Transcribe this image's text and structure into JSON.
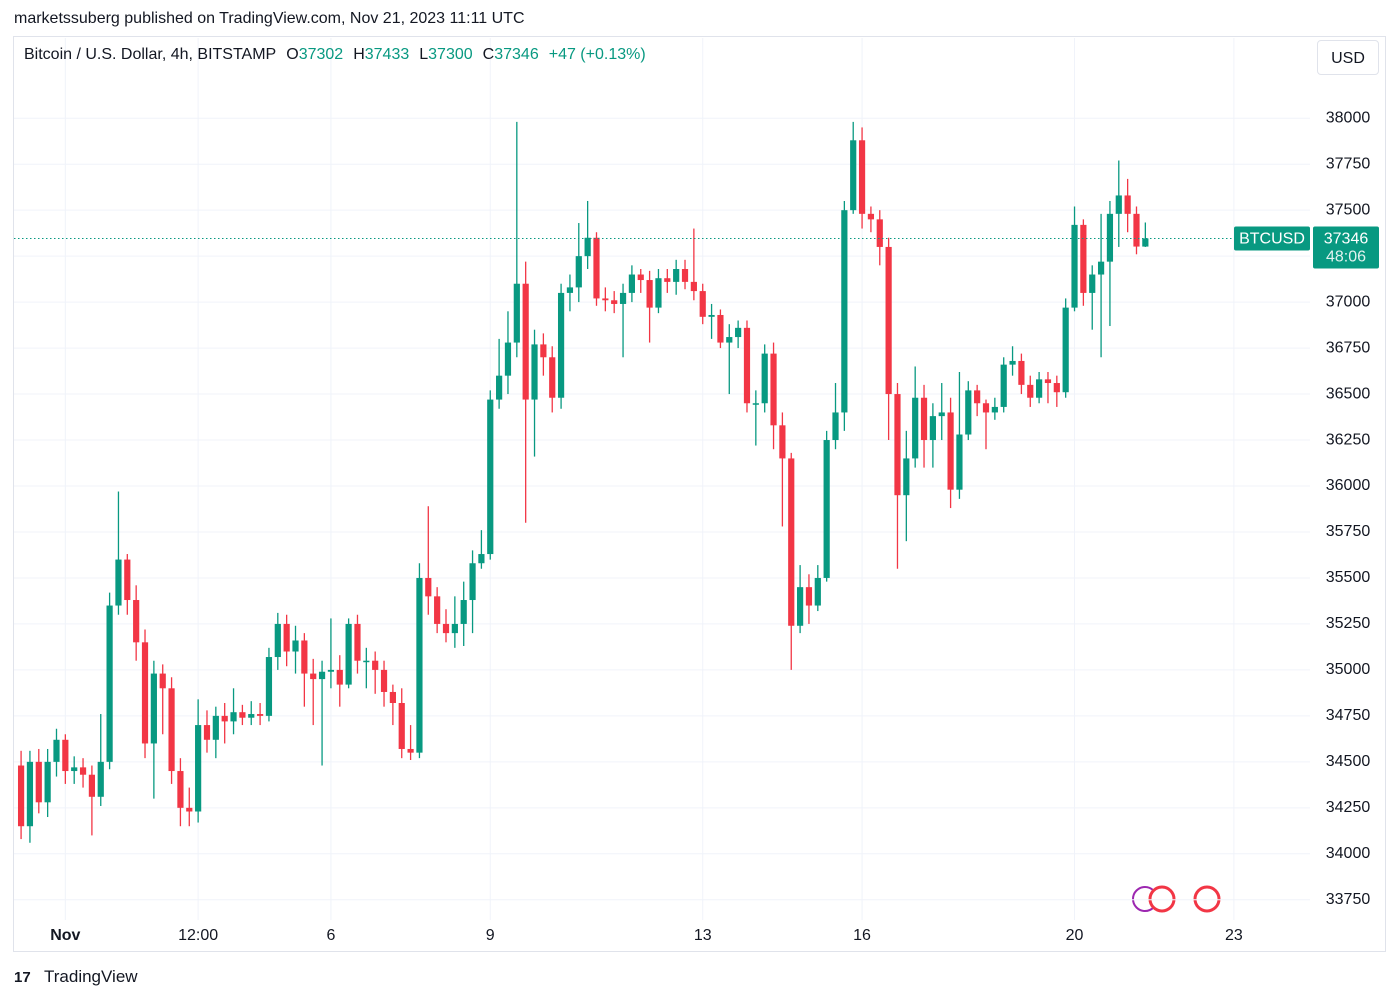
{
  "attribution": "marketssuberg published on TradingView.com, Nov 21, 2023 11:11 UTC",
  "footer": "TradingView",
  "currency_button": "USD",
  "chart_data": {
    "type": "candlestick",
    "title": "Bitcoin / U.S. Dollar, 4h, BITSTAMP",
    "ohlc_labels": [
      "O",
      "H",
      "L",
      "C"
    ],
    "change_label": "+47 (+0.13%)",
    "symbol_tag": "BTCUSD",
    "countdown": "48:06",
    "xlim": [
      -0.8,
      145.6
    ],
    "xticks": [
      {
        "value": 5,
        "label": "Nov"
      },
      {
        "value": 20,
        "label": "12:00"
      },
      {
        "value": 35,
        "label": "6"
      },
      {
        "value": 53,
        "label": "9"
      },
      {
        "value": 77,
        "label": "13"
      },
      {
        "value": 95,
        "label": "16"
      },
      {
        "value": 119,
        "label": "20"
      },
      {
        "value": 137,
        "label": "23"
      }
    ],
    "ylim": [
      33640,
      38235
    ],
    "yticks": [
      33750,
      34000,
      34250,
      34500,
      34750,
      35000,
      35250,
      35500,
      35750,
      36000,
      36250,
      36500,
      36750,
      37000,
      37250,
      37500,
      37750,
      38000
    ],
    "grid": true,
    "up_color": "#089981",
    "down_color": "#f23645",
    "series": [
      {
        "open": [
          34480,
          34150,
          34500,
          34280,
          34500,
          34620,
          34450,
          34470,
          34430,
          34310,
          34500,
          35350,
          35600,
          35380,
          35150,
          34600,
          34980,
          34900,
          34450,
          34250,
          34230,
          34700,
          34620,
          34750,
          34720,
          34770,
          34740,
          34760,
          34750,
          35070,
          35250,
          35100,
          35160,
          34980,
          34950,
          34990,
          35000,
          34920,
          35250,
          35050,
          35050,
          35000,
          34880,
          34820,
          34570,
          34550,
          35500,
          35400,
          35250,
          35200,
          35250,
          35380,
          35580,
          35630,
          36470,
          36600,
          36780,
          37100,
          36470,
          36770,
          36700,
          36480,
          37050,
          37080,
          37250,
          37350,
          37020,
          37010,
          36990,
          37050,
          37150,
          37120,
          36970,
          37130,
          37110,
          37180,
          37110,
          37060,
          36920,
          36930,
          36780,
          36810,
          36860,
          36450,
          36450,
          36720,
          36330,
          36150,
          35240,
          35450,
          35350,
          35500,
          36250,
          36400,
          37500,
          37880,
          37480,
          37450,
          37300,
          36500,
          35950,
          36150,
          36480,
          36250,
          36380,
          36400,
          35980,
          36280,
          36520,
          36450,
          36400,
          36430,
          36660,
          36680,
          36550,
          36480,
          36580,
          36560,
          36510,
          36970,
          37420,
          37050,
          37150,
          37220,
          37480,
          37580,
          37480,
          37302
        ],
        "high": [
          34560,
          34560,
          34570,
          34570,
          34680,
          34650,
          34530,
          34520,
          34480,
          34760,
          35420,
          35970,
          35630,
          35460,
          35220,
          35050,
          35030,
          34960,
          34520,
          34360,
          34840,
          34780,
          34800,
          34820,
          34900,
          34810,
          34830,
          34820,
          35120,
          35310,
          35300,
          35240,
          35200,
          35060,
          35050,
          35280,
          35080,
          35280,
          35300,
          35120,
          35100,
          35050,
          34920,
          34900,
          34700,
          35580,
          35890,
          35450,
          35330,
          35400,
          35480,
          35650,
          35760,
          36520,
          36800,
          36950,
          37980,
          37220,
          36850,
          36830,
          36760,
          37100,
          37150,
          37430,
          37550,
          37380,
          37080,
          37060,
          37100,
          37200,
          37180,
          37170,
          37180,
          37180,
          37230,
          37230,
          37400,
          37100,
          36990,
          36960,
          36880,
          36900,
          36900,
          36520,
          36770,
          36780,
          36400,
          36180,
          35570,
          35520,
          35570,
          36300,
          36560,
          37550,
          37980,
          37950,
          37520,
          37500,
          37350,
          36560,
          36300,
          36650,
          36550,
          36450,
          36560,
          36480,
          36620,
          36570,
          36550,
          36470,
          36480,
          36700,
          36760,
          36720,
          36600,
          36620,
          36620,
          36600,
          37020,
          37520,
          37450,
          37200,
          37480,
          37550,
          37770,
          37670,
          37520,
          37433
        ],
        "low": [
          34080,
          34060,
          34220,
          34200,
          34420,
          34380,
          34380,
          34360,
          34100,
          34260,
          34460,
          35300,
          35300,
          35050,
          34520,
          34300,
          34650,
          34380,
          34150,
          34150,
          34170,
          34550,
          34520,
          34600,
          34650,
          34700,
          34700,
          34700,
          34720,
          35000,
          35020,
          34980,
          34800,
          34700,
          34480,
          34900,
          34800,
          34900,
          34980,
          34900,
          34870,
          34800,
          34700,
          34520,
          34510,
          34520,
          35300,
          35200,
          35150,
          35120,
          35130,
          35200,
          35550,
          35600,
          36420,
          36500,
          36700,
          35800,
          36160,
          36600,
          36400,
          36420,
          36950,
          37000,
          37180,
          36980,
          36950,
          36940,
          36700,
          37000,
          37050,
          36780,
          36940,
          37050,
          37040,
          37070,
          37010,
          36880,
          36800,
          36750,
          36500,
          36750,
          36400,
          36220,
          36400,
          36200,
          35780,
          35000,
          35200,
          35250,
          35320,
          35480,
          36200,
          36300,
          37480,
          37400,
          37380,
          37200,
          36250,
          35550,
          35700,
          36100,
          36100,
          36100,
          36250,
          35880,
          35930,
          36250,
          36380,
          36200,
          36360,
          36400,
          36600,
          36500,
          36430,
          36450,
          36450,
          36430,
          36480,
          36950,
          36980,
          36850,
          36700,
          36870,
          37300,
          37380,
          37260,
          37300
        ],
        "close": [
          34150,
          34500,
          34280,
          34500,
          34620,
          34450,
          34470,
          34430,
          34310,
          34500,
          35350,
          35600,
          35380,
          35150,
          34600,
          34980,
          34900,
          34450,
          34250,
          34230,
          34700,
          34620,
          34750,
          34720,
          34770,
          34740,
          34760,
          34750,
          35070,
          35250,
          35100,
          35160,
          34980,
          34950,
          34990,
          35000,
          34920,
          35250,
          35050,
          35050,
          35000,
          34880,
          34820,
          34570,
          34550,
          35500,
          35400,
          35250,
          35200,
          35250,
          35380,
          35580,
          35630,
          36470,
          36600,
          36780,
          37100,
          36470,
          36770,
          36700,
          36480,
          37050,
          37080,
          37250,
          37350,
          37020,
          37010,
          36990,
          37050,
          37150,
          37120,
          36970,
          37130,
          37110,
          37180,
          37110,
          37060,
          36920,
          36930,
          36780,
          36810,
          36860,
          36450,
          36450,
          36720,
          36330,
          36150,
          35240,
          35450,
          35350,
          35500,
          36250,
          36400,
          37500,
          37880,
          37480,
          37450,
          37300,
          36500,
          35950,
          36150,
          36480,
          36250,
          36380,
          36400,
          35980,
          36280,
          36520,
          36450,
          36400,
          36430,
          36660,
          36680,
          36550,
          36480,
          36580,
          36560,
          36510,
          36970,
          37420,
          37050,
          37150,
          37220,
          37480,
          37580,
          37480,
          37302,
          37346
        ]
      }
    ]
  }
}
